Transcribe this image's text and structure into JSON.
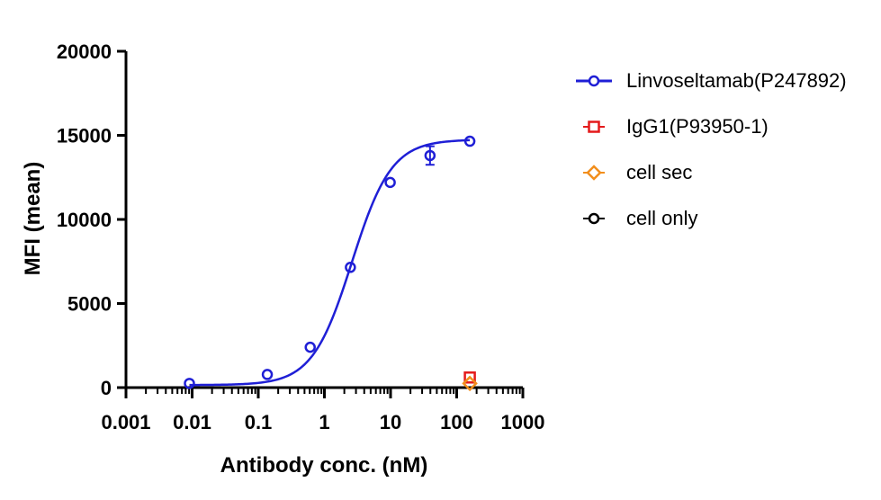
{
  "chart_data": {
    "type": "scatter",
    "x_scale": "log",
    "xlabel": "Antibody conc. (nM)",
    "ylabel": "MFI (mean)",
    "xlim": [
      0.001,
      1000
    ],
    "ylim": [
      0,
      20000
    ],
    "x_ticks": [
      "0.001",
      "0.01",
      "0.1",
      "1",
      "10",
      "100",
      "1000"
    ],
    "y_ticks": [
      "0",
      "5000",
      "10000",
      "15000",
      "20000"
    ],
    "legend_position": "right",
    "series": [
      {
        "name": "Linvoseltamab(P247892)",
        "color": "#1f1fd6",
        "marker": "circle",
        "fit_curve": true,
        "points": [
          {
            "x": 0.0091,
            "y": 250,
            "err": 0
          },
          {
            "x": 0.137,
            "y": 780,
            "err": 0
          },
          {
            "x": 0.61,
            "y": 2400,
            "err": 0
          },
          {
            "x": 2.47,
            "y": 7150,
            "err": 0
          },
          {
            "x": 9.88,
            "y": 12200,
            "err": 0
          },
          {
            "x": 39.5,
            "y": 13800,
            "err": 550
          },
          {
            "x": 158,
            "y": 14650,
            "err": 0
          }
        ]
      },
      {
        "name": "IgG1(P93950-1)",
        "color": "#e41a1c",
        "marker": "square",
        "points": [
          {
            "x": 158,
            "y": 600
          }
        ]
      },
      {
        "name": "cell sec",
        "color": "#f28e1c",
        "marker": "diamond",
        "points": [
          {
            "x": 158,
            "y": 250
          }
        ]
      },
      {
        "name": "cell only",
        "color": "#000000",
        "marker": "circle",
        "points": []
      }
    ]
  }
}
